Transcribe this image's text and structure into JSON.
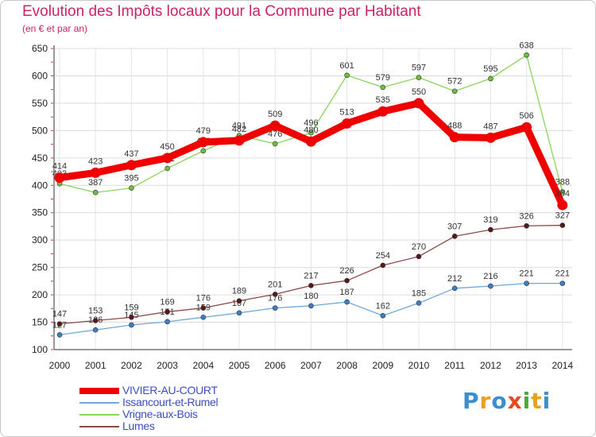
{
  "title": "Evolution des Impôts locaux pour la Commune par Habitant",
  "subtitle": "(en € et par an)",
  "logo": {
    "text": "Proxiti",
    "colors": [
      "#3a8fd0",
      "#e8a020",
      "#3a8fd0",
      "#e84a20",
      "#4aaa3a",
      "#e8a020",
      "#3a8fd0"
    ]
  },
  "chart_data": {
    "type": "line",
    "x": [
      2000,
      2001,
      2002,
      2003,
      2004,
      2005,
      2006,
      2007,
      2008,
      2009,
      2010,
      2011,
      2012,
      2013,
      2014
    ],
    "ylim": [
      100,
      650
    ],
    "yticks": [
      100,
      150,
      200,
      250,
      300,
      350,
      400,
      450,
      500,
      550,
      600,
      650
    ],
    "series": [
      {
        "name": "Vrigne-aux-Bois",
        "color": "#8ad45a",
        "marker": "#6cc040",
        "values": [
          403,
          387,
          395,
          431,
          463,
          491,
          476,
          496,
          601,
          579,
          597,
          572,
          595,
          638,
          388
        ],
        "labels": [
          "403",
          "387",
          "395",
          "431",
          "463",
          "491",
          "476",
          "496",
          "601",
          "579",
          "597",
          "572",
          "595",
          "638",
          "388"
        ]
      },
      {
        "name": "VIVIER-AU-COURT",
        "color": "#ee0000",
        "marker": "#ee0000",
        "values": [
          414,
          423,
          437,
          450,
          479,
          482,
          509,
          480,
          513,
          535,
          550,
          488,
          487,
          506,
          364
        ],
        "labels": [
          "414",
          "423",
          "437",
          "450",
          "479",
          "482",
          "509",
          "480",
          "513",
          "535",
          "550",
          "488",
          "487",
          "506",
          "364"
        ]
      },
      {
        "name": "Issancourt-et-Rumel",
        "color": "#6fa8dc",
        "marker": "#3a7fc8",
        "values": [
          127,
          136,
          145,
          151,
          159,
          167,
          176,
          180,
          187,
          162,
          185,
          212,
          216,
          221,
          221
        ],
        "labels": [
          "127",
          "136",
          "145",
          "151",
          "159",
          "167",
          "176",
          "180",
          "187",
          "162",
          "185",
          "212",
          "216",
          "221",
          "221"
        ]
      },
      {
        "name": "Lumes",
        "color": "#8b4a4a",
        "marker": "#5a1818",
        "values": [
          147,
          153,
          159,
          169,
          176,
          189,
          201,
          217,
          226,
          254,
          270,
          307,
          319,
          326,
          327
        ],
        "labels": [
          "147",
          "153",
          "159",
          "169",
          "176",
          "189",
          "201",
          "217",
          "226",
          "254",
          "270",
          "307",
          "319",
          "326",
          "327"
        ]
      }
    ],
    "legend": [
      "VIVIER-AU-COURT",
      "Issancourt-et-Rumel",
      "Vrigne-aux-Bois",
      "Lumes"
    ],
    "legend_position": "bottom-left"
  }
}
